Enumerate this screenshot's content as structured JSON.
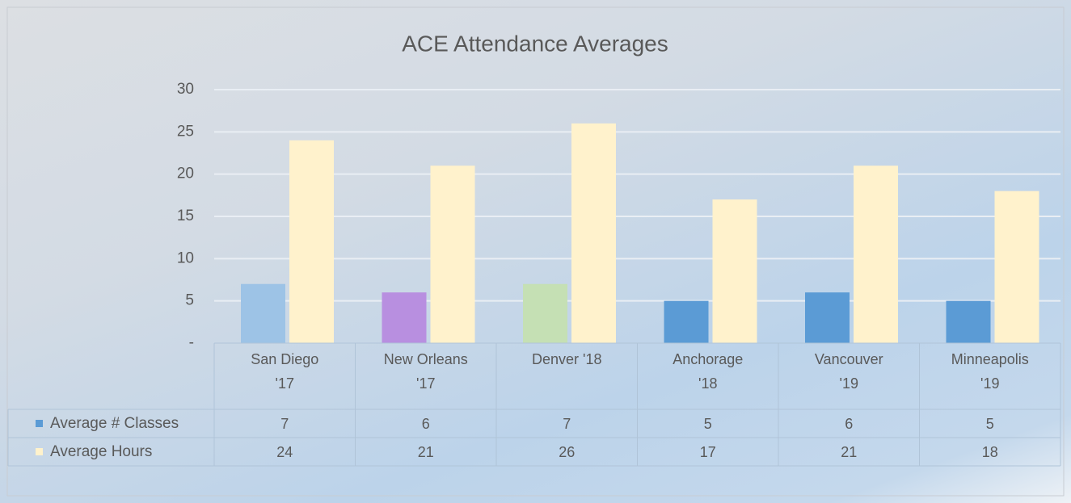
{
  "chart_data": {
    "type": "bar",
    "title": "ACE Attendance Averages",
    "categories": [
      "San Diego '17",
      "New Orleans '17",
      "Denver '18",
      "Anchorage '18",
      "Vancouver '19",
      "Minneapolis '19"
    ],
    "series": [
      {
        "name": "Average # Classes",
        "color": "#5b9bd5",
        "colors": [
          "#9dc3e6",
          "#b88fe0",
          "#c5e0b4",
          "#5b9bd5",
          "#5b9bd5",
          "#5b9bd5"
        ],
        "values": [
          7,
          6,
          7,
          5,
          6,
          5
        ]
      },
      {
        "name": "Average Hours",
        "color": "#fff2cc",
        "values": [
          24,
          21,
          26,
          17,
          21,
          18
        ]
      }
    ],
    "ylim": [
      0,
      30
    ],
    "yticks": [
      {
        "value": 0,
        "label": "-"
      },
      5,
      10,
      15,
      20,
      25,
      30
    ],
    "grid": true,
    "data_table": true
  }
}
